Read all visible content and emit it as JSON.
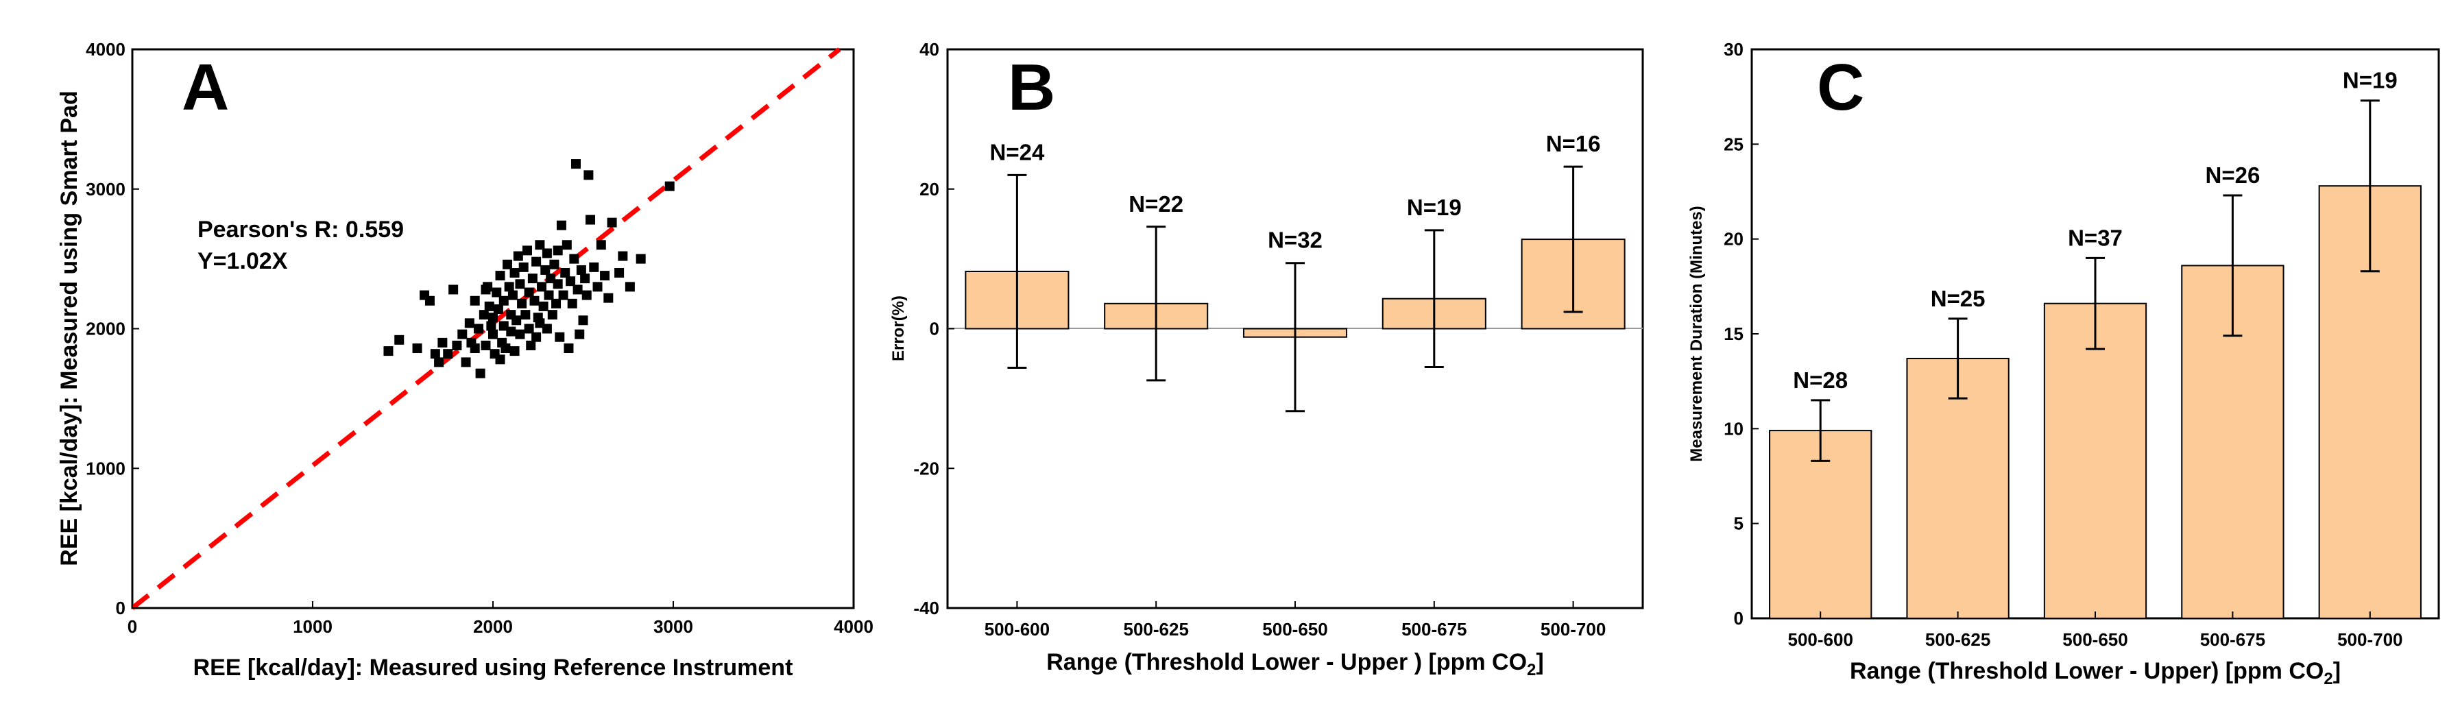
{
  "chart_data": [
    {
      "panel": "A",
      "type": "scatter",
      "xlabel": "REE [kcal/day]: Measured using Reference Instrument",
      "ylabel": "REE [kcal/day]: Measured using Smart Pad",
      "xlim": [
        0,
        4000
      ],
      "ylim": [
        0,
        4000
      ],
      "xticks": [
        "0",
        "1000",
        "2000",
        "3000",
        "4000"
      ],
      "yticks": [
        "0",
        "1000",
        "2000",
        "3000",
        "4000"
      ],
      "annotations": [
        "Pearson's R: 0.559",
        "Y=1.02X"
      ],
      "fit_line": {
        "slope": 1.02,
        "color": "#ff0000",
        "style": "dashed"
      },
      "points": [
        [
          1420,
          1840
        ],
        [
          1480,
          1920
        ],
        [
          1580,
          1860
        ],
        [
          1620,
          2240
        ],
        [
          1650,
          2200
        ],
        [
          1680,
          1820
        ],
        [
          1700,
          1760
        ],
        [
          1720,
          1900
        ],
        [
          1750,
          1820
        ],
        [
          1780,
          2280
        ],
        [
          1800,
          1880
        ],
        [
          1830,
          1960
        ],
        [
          1850,
          1760
        ],
        [
          1870,
          2040
        ],
        [
          1880,
          1900
        ],
        [
          1900,
          2200
        ],
        [
          1900,
          1860
        ],
        [
          1920,
          2000
        ],
        [
          1930,
          1680
        ],
        [
          1950,
          2100
        ],
        [
          1960,
          1880
        ],
        [
          1970,
          2300
        ],
        [
          1980,
          2160
        ],
        [
          1990,
          2020
        ],
        [
          2000,
          2080
        ],
        [
          2000,
          1960
        ],
        [
          2010,
          1820
        ],
        [
          2020,
          2260
        ],
        [
          2030,
          2140
        ],
        [
          2040,
          2380
        ],
        [
          2050,
          1900
        ],
        [
          2060,
          2020
        ],
        [
          2060,
          2200
        ],
        [
          2070,
          1860
        ],
        [
          2080,
          2460
        ],
        [
          2090,
          2300
        ],
        [
          2100,
          2100
        ],
        [
          2100,
          1980
        ],
        [
          2110,
          2240
        ],
        [
          2120,
          2400
        ],
        [
          2130,
          2060
        ],
        [
          2140,
          2520
        ],
        [
          2150,
          1960
        ],
        [
          2150,
          2320
        ],
        [
          2160,
          2180
        ],
        [
          2170,
          2440
        ],
        [
          2180,
          2100
        ],
        [
          2190,
          2560
        ],
        [
          2200,
          2260
        ],
        [
          2200,
          2000
        ],
        [
          2210,
          1880
        ],
        [
          2220,
          2360
        ],
        [
          2230,
          2200
        ],
        [
          2240,
          2480
        ],
        [
          2250,
          2080
        ],
        [
          2260,
          2600
        ],
        [
          2270,
          2300
        ],
        [
          2280,
          2160
        ],
        [
          2290,
          2420
        ],
        [
          2300,
          2000
        ],
        [
          2300,
          2540
        ],
        [
          2310,
          2240
        ],
        [
          2320,
          2360
        ],
        [
          2330,
          2100
        ],
        [
          2340,
          2460
        ],
        [
          2350,
          2180
        ],
        [
          2360,
          2320
        ],
        [
          2370,
          1940
        ],
        [
          2380,
          2740
        ],
        [
          2390,
          2240
        ],
        [
          2400,
          2400
        ],
        [
          2410,
          2600
        ],
        [
          2420,
          1860
        ],
        [
          2430,
          2340
        ],
        [
          2440,
          2180
        ],
        [
          2450,
          2500
        ],
        [
          2460,
          3180
        ],
        [
          2470,
          2280
        ],
        [
          2480,
          1960
        ],
        [
          2490,
          2420
        ],
        [
          2500,
          2060
        ],
        [
          2510,
          2360
        ],
        [
          2520,
          2240
        ],
        [
          2530,
          3100
        ],
        [
          2540,
          2780
        ],
        [
          2560,
          2440
        ],
        [
          2580,
          2300
        ],
        [
          2600,
          2600
        ],
        [
          2620,
          2380
        ],
        [
          2640,
          2220
        ],
        [
          2660,
          2760
        ],
        [
          2700,
          2400
        ],
        [
          2720,
          2520
        ],
        [
          2760,
          2300
        ],
        [
          2820,
          2500
        ],
        [
          2980,
          3020
        ],
        [
          2040,
          1780
        ],
        [
          1960,
          2280
        ],
        [
          2240,
          1940
        ],
        [
          2120,
          1840
        ],
        [
          2360,
          2560
        ],
        [
          2260,
          2040
        ]
      ]
    },
    {
      "panel": "B",
      "type": "bar",
      "categories": [
        "500-600",
        "500-625",
        "500-650",
        "500-675",
        "500-700"
      ],
      "values": [
        8.2,
        3.6,
        -1.2,
        4.3,
        12.8
      ],
      "errors": [
        13.8,
        11.0,
        10.6,
        9.8,
        10.4
      ],
      "n_labels": [
        "N=24",
        "N=22",
        "N=32",
        "N=19",
        "N=16"
      ],
      "ylabel": "Error(%)",
      "xlabel_main": "Range (Threshold Lower - Upper ) [ppm CO",
      "xlabel_sub": "2",
      "xlabel_end": "]",
      "ylim": [
        -40,
        40
      ],
      "yticks": [
        "-40",
        "-20",
        "0",
        "20",
        "40"
      ],
      "bar_color": "#fdcb98"
    },
    {
      "panel": "C",
      "type": "bar",
      "categories": [
        "500-600",
        "500-625",
        "500-650",
        "500-675",
        "500-700"
      ],
      "values": [
        9.9,
        13.7,
        16.6,
        18.6,
        22.8
      ],
      "errors": [
        1.6,
        2.1,
        2.4,
        3.7,
        4.5
      ],
      "n_labels": [
        "N=28",
        "N=25",
        "N=37",
        "N=26",
        "N=19"
      ],
      "ylabel": "Measurement Duration (Minutes)",
      "xlabel_main": "Range (Threshold Lower - Upper) [ppm CO",
      "xlabel_sub": "2",
      "xlabel_end": "]",
      "ylim": [
        0,
        30
      ],
      "yticks": [
        "0",
        "5",
        "10",
        "15",
        "20",
        "25",
        "30"
      ],
      "bar_color": "#fdcb98"
    }
  ]
}
